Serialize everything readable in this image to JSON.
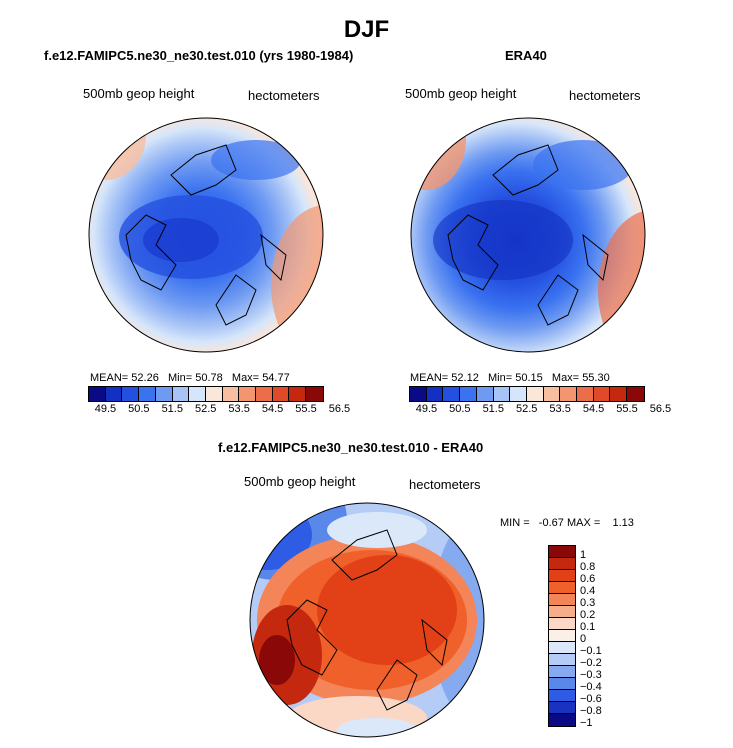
{
  "title": "DJF",
  "panels": [
    {
      "name": "model",
      "title": "f.e12.FAMIPC5.ne30_ne30.test.010 (yrs 1980-1984)",
      "variable": "500mb geop height",
      "units": "hectometers",
      "stats": {
        "mean_label": "MEAN=",
        "mean": "52.26",
        "min_label": "Min=",
        "min": "50.78",
        "max_label": "Max=",
        "max": "54.77"
      },
      "colorbar_ticks": [
        "49.5",
        "50.5",
        "51.5",
        "52.5",
        "53.5",
        "54.5",
        "55.5",
        "56.5"
      ]
    },
    {
      "name": "obs",
      "title": "ERA40",
      "variable": "500mb geop height",
      "units": "hectometers",
      "stats": {
        "mean_label": "MEAN=",
        "mean": "52.12",
        "min_label": "Min=",
        "min": "50.15",
        "max_label": "Max=",
        "max": "55.30"
      },
      "colorbar_ticks": [
        "49.5",
        "50.5",
        "51.5",
        "52.5",
        "53.5",
        "54.5",
        "55.5",
        "56.5"
      ]
    },
    {
      "name": "diff",
      "title": "f.e12.FAMIPC5.ne30_ne30.test.010 - ERA40",
      "variable": "500mb geop height",
      "units": "hectometers",
      "stats_text": "MIN =   -0.67 MAX =    1.13",
      "colorbar_ticks": [
        "1",
        "0.8",
        "0.6",
        "0.4",
        "0.3",
        "0.2",
        "0.1",
        "0",
        "−0.1",
        "−0.2",
        "−0.3",
        "−0.4",
        "−0.6",
        "−0.8",
        "−1"
      ]
    }
  ],
  "colors": {
    "abs_scale": [
      "#0a0a86",
      "#1230c2",
      "#2450e0",
      "#3a72f0",
      "#6e9af2",
      "#a8c4f6",
      "#d6e6fa",
      "#fbe6da",
      "#f8bea0",
      "#f29670",
      "#ec6e48",
      "#e14a28",
      "#c4280e",
      "#8a0808"
    ],
    "diff_scale": [
      "#8a0808",
      "#c4280e",
      "#e24016",
      "#f0602a",
      "#f38558",
      "#f6ad8a",
      "#fbd8c6",
      "#fbf0e8",
      "#dbe8fa",
      "#b4ccf6",
      "#86aaf0",
      "#5a88ea",
      "#2e5ce4",
      "#1a32c0",
      "#0a0a86"
    ]
  }
}
